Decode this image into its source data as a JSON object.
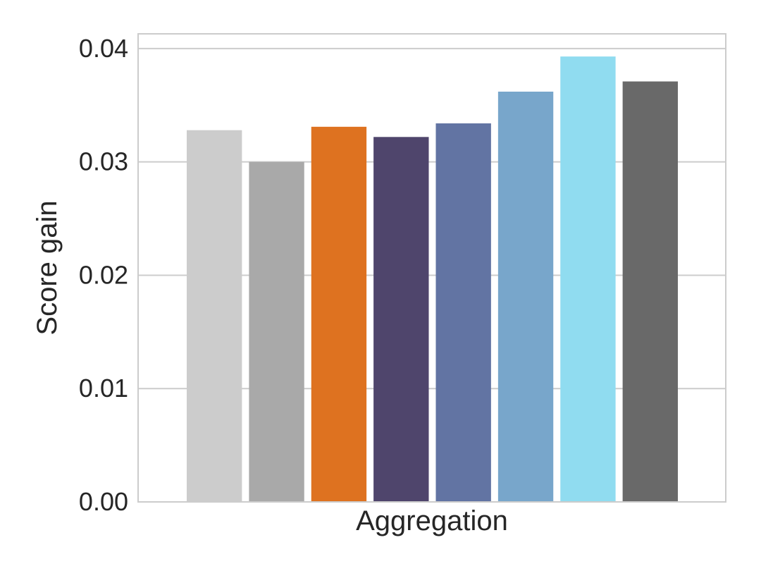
{
  "chart_data": {
    "type": "bar",
    "title": "",
    "xlabel": "Aggregation",
    "ylabel": "Score gain",
    "ylim": [
      0,
      0.0413
    ],
    "yticks": [
      0.0,
      0.01,
      0.02,
      0.03,
      0.04
    ],
    "ytick_labels": [
      "0.00",
      "0.01",
      "0.02",
      "0.03",
      "0.04"
    ],
    "grid": "horizontal",
    "legend": "none",
    "bars": [
      {
        "value": 0.0328,
        "color": "#cccccc"
      },
      {
        "value": 0.03,
        "color": "#a9a9a9"
      },
      {
        "value": 0.0331,
        "color": "#de7220"
      },
      {
        "value": 0.0322,
        "color": "#4f456c"
      },
      {
        "value": 0.0334,
        "color": "#6274a3"
      },
      {
        "value": 0.0362,
        "color": "#78a6cb"
      },
      {
        "value": 0.0393,
        "color": "#90dcf0"
      },
      {
        "value": 0.0371,
        "color": "#696969"
      }
    ]
  }
}
